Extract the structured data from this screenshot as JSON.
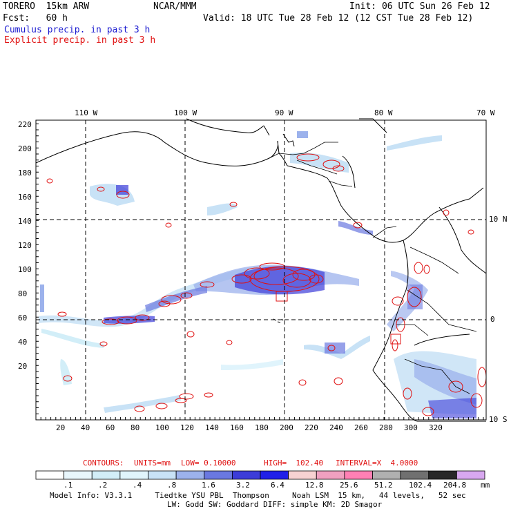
{
  "header": {
    "model": "TORERO  15km ARW",
    "org": "NCAR/MMM",
    "init": "Init: 06 UTC Sun 26 Feb 12",
    "fcst": "Fcst:   60 h",
    "valid": "Valid: 18 UTC Tue 28 Feb 12 (12 CST Tue 28 Feb 12)",
    "field1": "Cumulus precip. in past 3 h",
    "field2": "Explicit precip. in past 3 h",
    "field1_color": "#1a1ad0",
    "field2_color": "#e01010"
  },
  "map": {
    "lon_labels": [
      "110 W",
      "100 W",
      "90 W",
      "80 W",
      "70 W"
    ],
    "lat_labels": [
      "10 N",
      "0",
      "10 S"
    ],
    "y_ticks": [
      "220",
      "200",
      "180",
      "160",
      "140",
      "120",
      "100",
      "80",
      "60",
      "40",
      "20"
    ],
    "x_ticks": [
      "20",
      "40",
      "60",
      "80",
      "100",
      "120",
      "140",
      "160",
      "180",
      "200",
      "220",
      "240",
      "260",
      "280",
      "300",
      "320"
    ]
  },
  "contours": {
    "label": "CONTOURS:",
    "units": "UNITS=mm",
    "low": "LOW= 0.10000",
    "high": "HIGH=  102.40",
    "interval": "INTERVAL=X  4.0000",
    "color": "#e01010"
  },
  "colorbar": {
    "colors": [
      "#ffffff",
      "#e8f6fc",
      "#d2eef8",
      "#e0f4fc",
      "#c8e2f6",
      "#9cb2ec",
      "#6a78e0",
      "#3c3cd8",
      "#2020e8",
      "#f8d2d2",
      "#f0a0c0",
      "#ff80b4",
      "#b0b0b0",
      "#707070",
      "#282828",
      "#d8a8f0"
    ],
    "labels": [
      ".1",
      ".2",
      ".4",
      ".8",
      "1.6",
      "3.2",
      "6.4",
      "12.8",
      "25.6",
      "51.2",
      "102.4",
      "204.8"
    ],
    "unit": "mm"
  },
  "footer": {
    "line1": "Model Info: V3.3.1     Tiedtke YSU PBL  Thompson     Noah LSM  15 km,   44 levels,   52 sec",
    "line2": "LW: Godd SW: Goddard DIFF: simple KM: 2D Smagor"
  }
}
